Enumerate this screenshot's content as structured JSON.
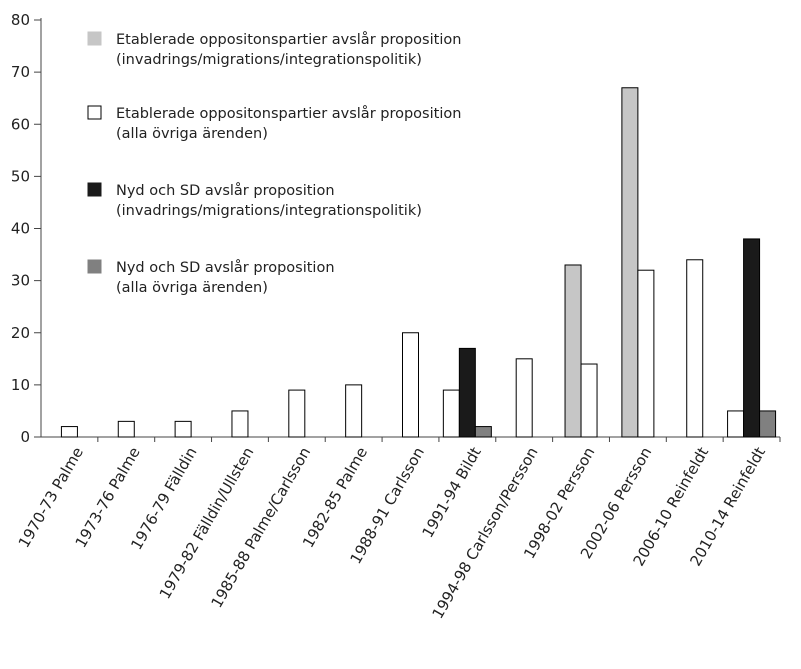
{
  "chart_data": {
    "type": "bar",
    "title": "",
    "xlabel": "",
    "ylabel": "",
    "ylim": [
      0,
      80
    ],
    "yticks": [
      0,
      10,
      20,
      30,
      40,
      50,
      60,
      70,
      80
    ],
    "grid": false,
    "legend_position": "top-left",
    "categories": [
      "1970-73 Palme",
      "1973-76 Palme",
      "1976-79 Fälldin",
      "1979-82 Fälldin/Ullsten",
      "1985-88 Palme/Carlsson",
      "1982-85 Palme",
      "1988-91 Carlsson",
      "1991-94 Bildt",
      "1994-98 Carlsson/Persson",
      "1998-02 Persson",
      "2002-06 Persson",
      "2006-10 Reinfeldt",
      "2010-14 Reinfeldt"
    ],
    "series": [
      {
        "name": "Etablerade oppositonspartier avslår proposition (invadrings/migrations/integrationspolitik)",
        "color": "#c6c6c6",
        "values": [
          null,
          null,
          null,
          null,
          null,
          null,
          null,
          null,
          null,
          33,
          67,
          null,
          null
        ]
      },
      {
        "name": "Etablerade oppositonspartier avslår proposition (alla övriga ärenden)",
        "color": "#ffffff",
        "values": [
          2,
          3,
          3,
          5,
          9,
          10,
          20,
          9,
          15,
          14,
          32,
          34,
          5
        ]
      },
      {
        "name": "Nyd och SD avslår proposition (invadrings/migrations/integrationspolitik)",
        "color": "#1a1a1a",
        "values": [
          null,
          null,
          null,
          null,
          null,
          null,
          null,
          17,
          null,
          null,
          null,
          null,
          38
        ]
      },
      {
        "name": "Nyd och SD avslår proposition (alla övriga ärenden)",
        "color": "#808080",
        "values": [
          null,
          null,
          null,
          null,
          null,
          null,
          null,
          2,
          null,
          null,
          null,
          null,
          5
        ]
      }
    ]
  },
  "legend": [
    {
      "line1": "Etablerade oppositonspartier avslår proposition",
      "line2": "(invadrings/migrations/integrationspolitik)",
      "color": "#c6c6c6",
      "outlined": false
    },
    {
      "line1": "Etablerade oppositonspartier avslår proposition",
      "line2": "(alla övriga ärenden)",
      "color": "#ffffff",
      "outlined": true
    },
    {
      "line1": "Nyd och SD avslår proposition",
      "line2": "(invadrings/migrations/integrationspolitik)",
      "color": "#1a1a1a",
      "outlined": false
    },
    {
      "line1": "Nyd och SD avslår proposition",
      "line2": "(alla övriga ärenden)",
      "color": "#808080",
      "outlined": false
    }
  ]
}
